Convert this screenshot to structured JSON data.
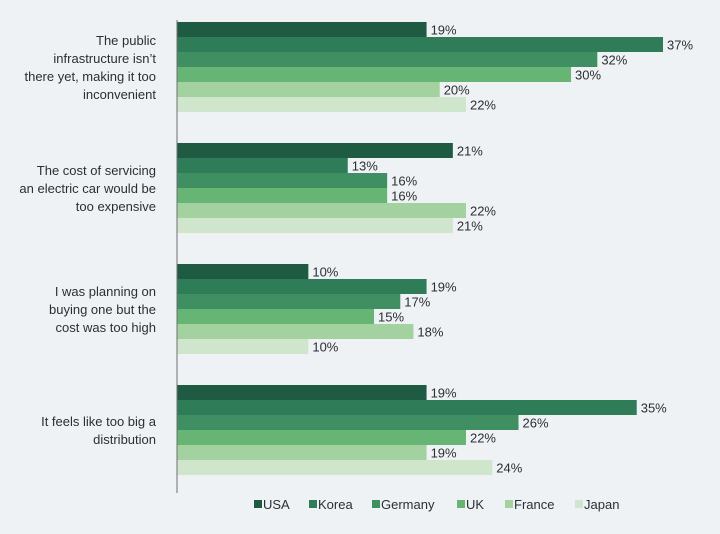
{
  "chart_data": {
    "type": "bar",
    "orientation": "horizontal",
    "categories": [
      "The public infrastructure isn’t there yet, making it too inconvenient",
      "The cost of servicing an electric car would be too expensive",
      "I was planning on buying one but the cost was too high",
      "It feels like too big a distribution"
    ],
    "category_label_lines": [
      [
        "The public",
        "infrastructure isn’t",
        "there yet, making it too",
        "inconvenient"
      ],
      [
        "The cost of servicing",
        "an electric car would be",
        "too expensive"
      ],
      [
        "I was planning on",
        "buying one but the",
        "cost was too high"
      ],
      [
        "It feels like too big a",
        "distribution"
      ]
    ],
    "series": [
      {
        "name": "USA",
        "color": "#1f5a43",
        "values": [
          19,
          21,
          10,
          19
        ],
        "labels": [
          "19%",
          "21%",
          "10%",
          "19%"
        ]
      },
      {
        "name": "Korea",
        "color": "#2e7d58",
        "values": [
          37,
          13,
          19,
          35
        ],
        "labels": [
          "37%",
          "13%",
          "19%",
          "35%"
        ]
      },
      {
        "name": "Germany",
        "color": "#3f8f63",
        "values": [
          32,
          16,
          17,
          26
        ],
        "labels": [
          "32%",
          "16%",
          "17%",
          "26%"
        ]
      },
      {
        "name": "UK",
        "color": "#66b575",
        "values": [
          30,
          16,
          15,
          22
        ],
        "labels": [
          "30%",
          "16%",
          "15%",
          "22%"
        ]
      },
      {
        "name": "France",
        "color": "#a4d1a0",
        "values": [
          20,
          22,
          18,
          19
        ],
        "labels": [
          "20%",
          "22%",
          "18%",
          "19%"
        ]
      },
      {
        "name": "Japan",
        "color": "#cfe5cc",
        "values": [
          22,
          21,
          10,
          24
        ],
        "labels": [
          "22%",
          "21%",
          "10%",
          "24%"
        ]
      }
    ],
    "xlim": [
      0,
      38.5
    ],
    "grid": false,
    "legend_position": "bottom"
  }
}
